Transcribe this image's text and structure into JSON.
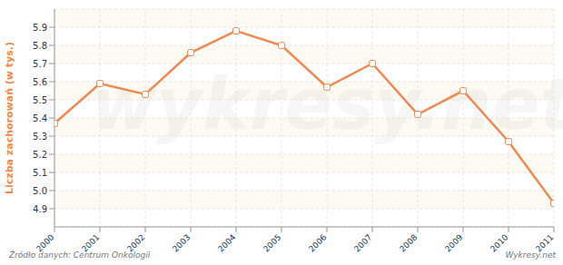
{
  "chart_data": {
    "type": "line",
    "y_label": "Liczba zachorowań (w tys.)",
    "source": "Źródło danych: Centrum Onkologii",
    "credit": "Wykresy.net",
    "watermark": "wykresy.net",
    "x": [
      2000,
      2001,
      2002,
      2003,
      2004,
      2005,
      2006,
      2007,
      2008,
      2009,
      2010,
      2011
    ],
    "values": [
      5.37,
      5.59,
      5.53,
      5.76,
      5.88,
      5.8,
      5.57,
      5.7,
      5.42,
      5.55,
      5.27,
      4.93
    ],
    "color": "#f4874b",
    "marker": "circle",
    "xlim": [
      2000,
      2011
    ],
    "xticks": [
      2000,
      2001,
      2002,
      2003,
      2004,
      2005,
      2006,
      2007,
      2008,
      2009,
      2010,
      2011
    ],
    "ylim": [
      4.8,
      6.0
    ],
    "yticks": [
      4.9,
      {
        "value": 5,
        "label": "5.0"
      },
      5.1,
      5.2,
      5.3,
      5.4,
      5.5,
      5.6,
      5.7,
      5.8,
      5.9
    ],
    "grid": true
  }
}
